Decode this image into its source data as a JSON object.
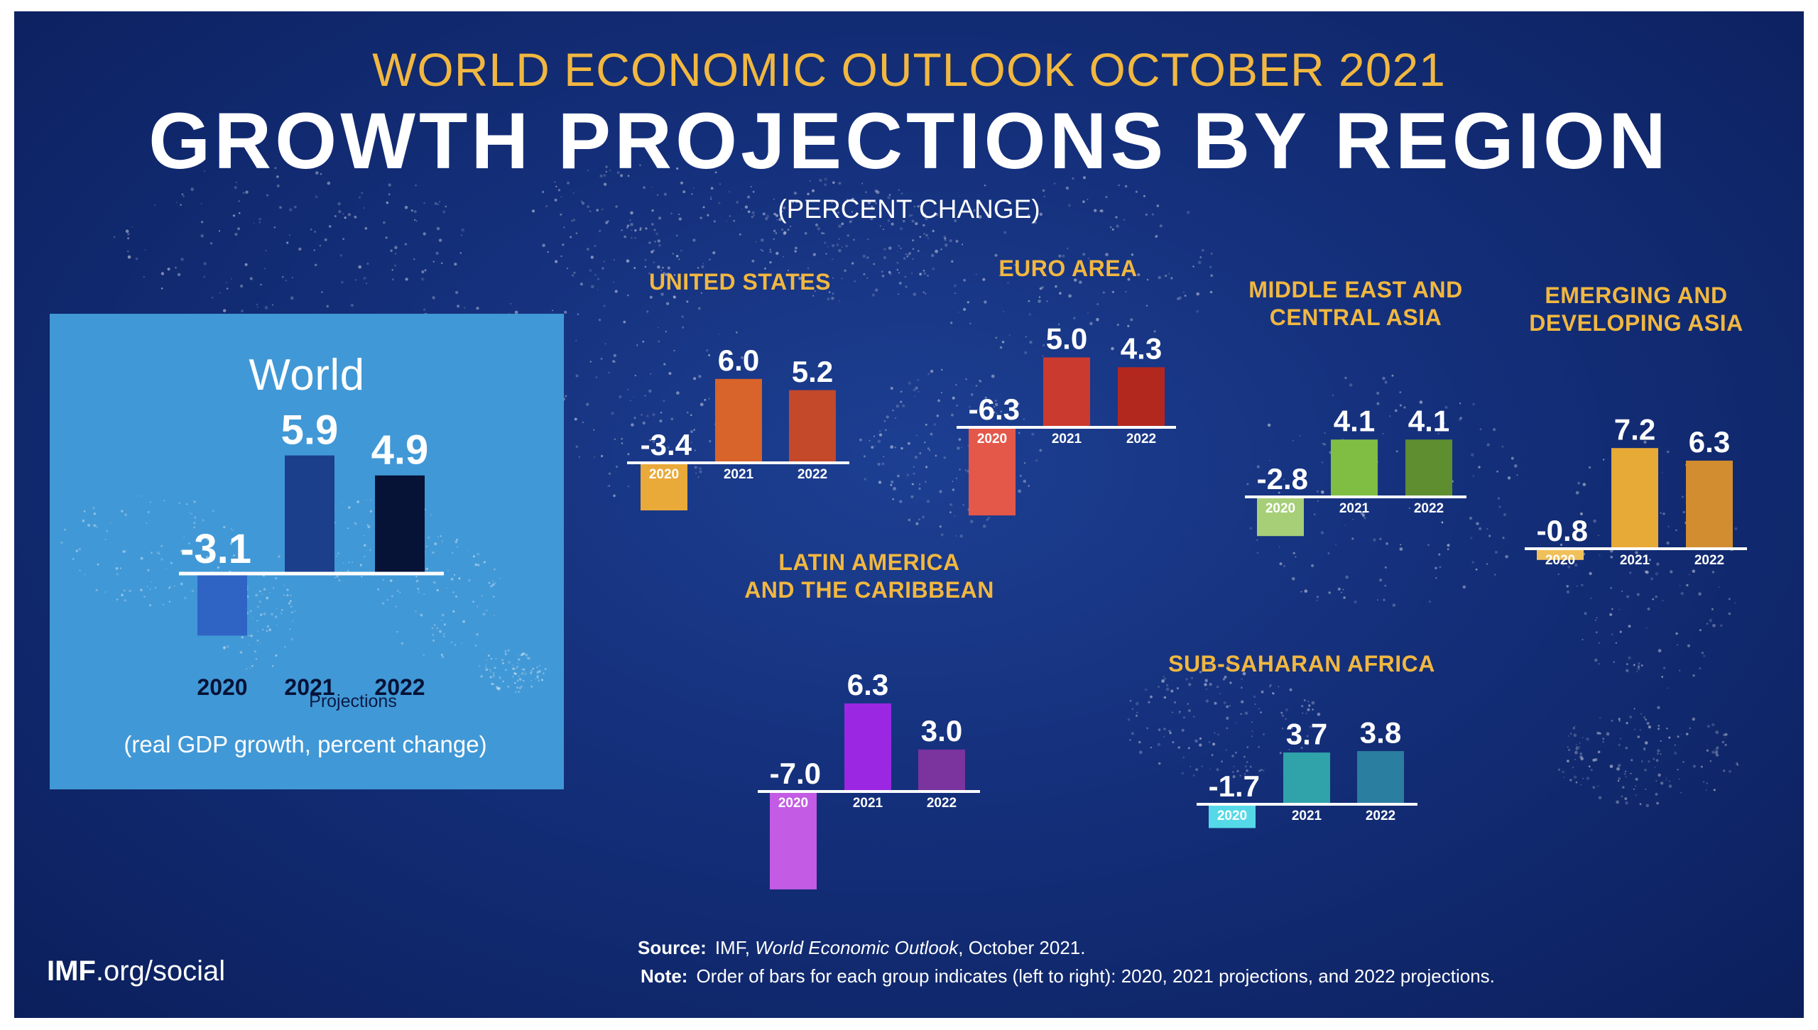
{
  "header": {
    "subtitle": "WORLD ECONOMIC OUTLOOK OCTOBER 2021",
    "title": "GROWTH PROJECTIONS BY REGION",
    "unit": "(PERCENT CHANGE)"
  },
  "footer": {
    "source_label": "Source:",
    "source_pre": "IMF,",
    "source_publication": "World Economic Outlook",
    "source_post": ", October 2021.",
    "note_label": "Note:",
    "note_text": "Order of bars for each group indicates (left to right): 2020, 2021 projections, and 2022 projections."
  },
  "brand": {
    "bold": "IMF",
    "rest": ".org/social"
  },
  "world_panel": {
    "projections_label": "Projections",
    "caption": "(real GDP growth, percent change)",
    "background": "#4198d6"
  },
  "chart_data": [
    {
      "type": "bar",
      "title": "World",
      "categories": [
        "2020",
        "2021",
        "2022"
      ],
      "values": [
        -3.1,
        5.9,
        4.9
      ],
      "value_labels": [
        "-3.1",
        "5.9",
        "4.9"
      ],
      "colors": [
        "#2f64c4",
        "#1c3f8c",
        "#061236"
      ]
    },
    {
      "type": "bar",
      "title": "UNITED STATES",
      "categories": [
        "2020",
        "2021",
        "2022"
      ],
      "values": [
        -3.4,
        6.0,
        5.2
      ],
      "value_labels": [
        "-3.4",
        "6.0",
        "5.2"
      ],
      "colors": [
        "#e9aa3a",
        "#d8632b",
        "#c4482a"
      ]
    },
    {
      "type": "bar",
      "title": "EURO AREA",
      "categories": [
        "2020",
        "2021",
        "2022"
      ],
      "values": [
        -6.3,
        5.0,
        4.3
      ],
      "value_labels": [
        "-6.3",
        "5.0",
        "4.3"
      ],
      "colors": [
        "#e4584a",
        "#cb3a2e",
        "#b2281f"
      ]
    },
    {
      "type": "bar",
      "title": "MIDDLE EAST AND CENTRAL ASIA",
      "categories": [
        "2020",
        "2021",
        "2022"
      ],
      "values": [
        -2.8,
        4.1,
        4.1
      ],
      "value_labels": [
        "-2.8",
        "4.1",
        "4.1"
      ],
      "colors": [
        "#a6cf78",
        "#7fbe43",
        "#5f8e31"
      ]
    },
    {
      "type": "bar",
      "title": "EMERGING AND DEVELOPING ASIA",
      "categories": [
        "2020",
        "2021",
        "2022"
      ],
      "values": [
        -0.8,
        7.2,
        6.3
      ],
      "value_labels": [
        "-0.8",
        "7.2",
        "6.3"
      ],
      "colors": [
        "#f0c15a",
        "#e7aa36",
        "#d18d2f"
      ]
    },
    {
      "type": "bar",
      "title": "LATIN AMERICA AND THE CARIBBEAN",
      "categories": [
        "2020",
        "2021",
        "2022"
      ],
      "values": [
        -7.0,
        6.3,
        3.0
      ],
      "value_labels": [
        "-7.0",
        "6.3",
        "3.0"
      ],
      "colors": [
        "#c35be4",
        "#9b27e2",
        "#7b339e"
      ]
    },
    {
      "type": "bar",
      "title": "SUB-SAHARAN AFRICA",
      "categories": [
        "2020",
        "2021",
        "2022"
      ],
      "values": [
        -1.7,
        3.7,
        3.8
      ],
      "value_labels": [
        "-1.7",
        "3.7",
        "3.8"
      ],
      "colors": [
        "#55d9e8",
        "#2fa3a9",
        "#2a7e9f"
      ]
    }
  ]
}
